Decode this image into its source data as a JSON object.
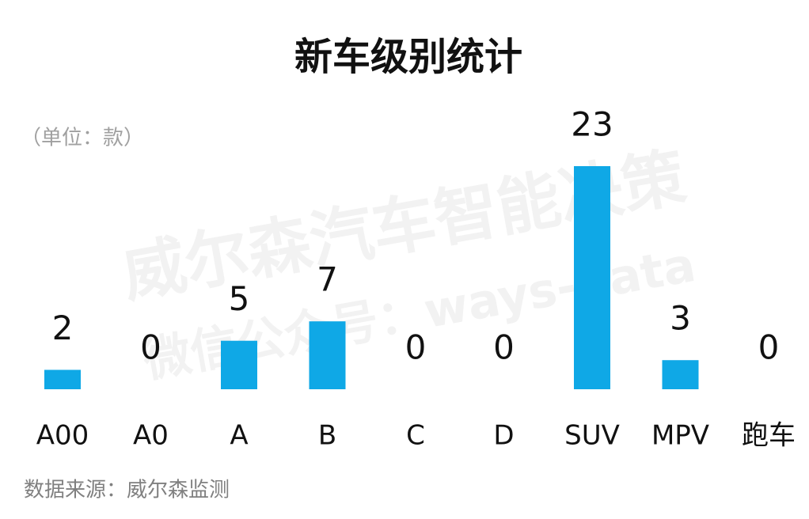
{
  "chart_data": {
    "type": "bar",
    "title": "新车级别统计",
    "unit_note": "（单位：款）",
    "categories": [
      "A00",
      "A0",
      "A",
      "B",
      "C",
      "D",
      "SUV",
      "MPV",
      "跑车"
    ],
    "values": [
      2,
      0,
      5,
      7,
      0,
      0,
      23,
      3,
      0
    ],
    "color": "#0fa8e6",
    "source": "数据来源：威尔森监测",
    "watermark": [
      "威尔森汽车智能决策",
      "微信公众号：ways-data"
    ]
  }
}
